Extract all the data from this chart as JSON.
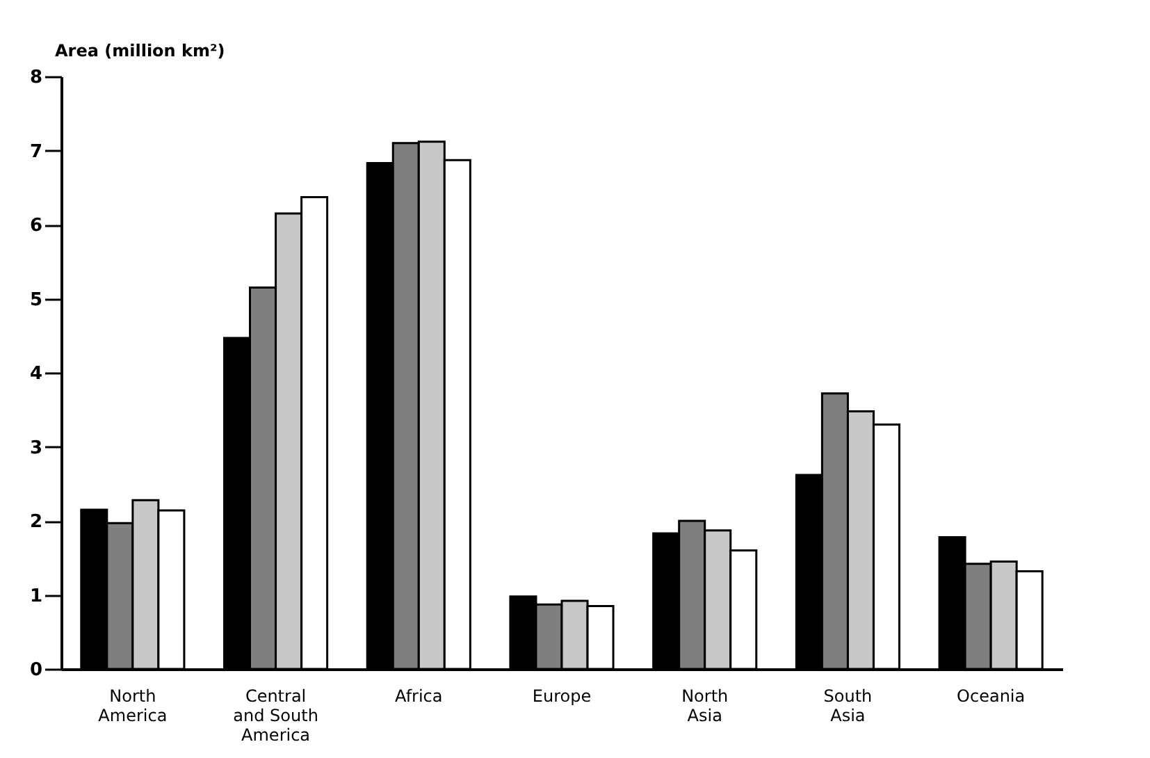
{
  "chart_data": {
    "type": "bar",
    "ylabel": "Area (million km²)",
    "categories": [
      "North\nAmerica",
      "Central\nand South\nAmerica",
      "Africa",
      "Europe",
      "North\nAsia",
      "South\nAsia",
      "Oceania"
    ],
    "series": [
      {
        "color": "#000000",
        "values": [
          2.15,
          4.47,
          6.83,
          0.98,
          1.83,
          2.62,
          1.78
        ]
      },
      {
        "color": "#7f7f7f",
        "values": [
          1.97,
          5.15,
          7.1,
          0.87,
          2.0,
          3.72,
          1.42
        ]
      },
      {
        "color": "#c8c8c8",
        "values": [
          2.28,
          6.15,
          7.12,
          0.92,
          1.87,
          3.48,
          1.45
        ]
      },
      {
        "color": "#ffffff",
        "values": [
          2.14,
          6.37,
          6.87,
          0.85,
          1.6,
          3.3,
          1.32
        ]
      }
    ],
    "ylim": [
      0,
      8
    ],
    "yticks": [
      0,
      1,
      2,
      3,
      4,
      5,
      6,
      7,
      8
    ],
    "grid": false,
    "legend": false
  }
}
